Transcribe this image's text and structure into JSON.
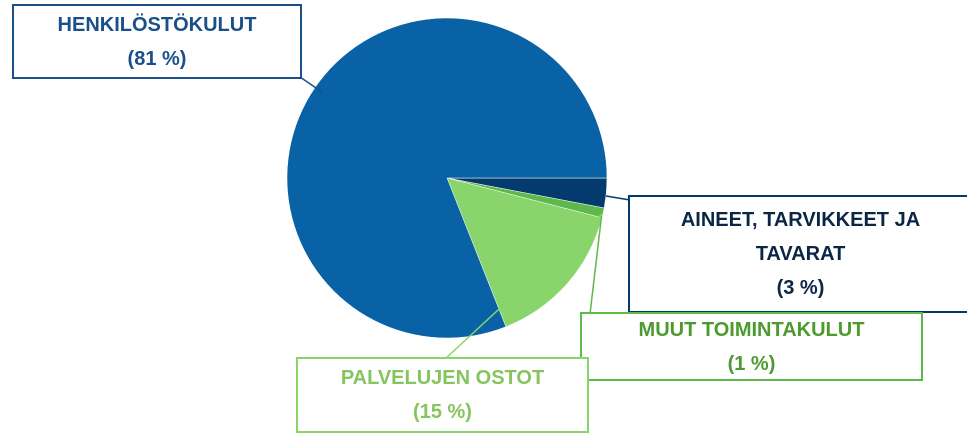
{
  "chart_data": {
    "type": "pie",
    "categories": [
      "AINEET, TARVIKKEET JA TAVARAT",
      "MUUT TOIMINTAKULUT",
      "PALVELUJEN OSTOT",
      "HENKILÖSTÖKULUT"
    ],
    "values": [
      3,
      1,
      15,
      81
    ],
    "value_labels": [
      "(3 %)",
      "(1 %)",
      "(15 %)",
      "(81 %)"
    ],
    "colors": [
      "#033b6f",
      "#5fb84a",
      "#8ad46c",
      "#0862a5"
    ]
  }
}
